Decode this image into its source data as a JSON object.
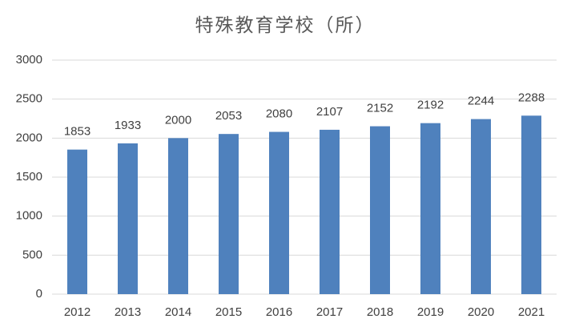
{
  "chart_data": {
    "type": "bar",
    "title": "特殊教育学校（所）",
    "categories": [
      "2012",
      "2013",
      "2014",
      "2015",
      "2016",
      "2017",
      "2018",
      "2019",
      "2020",
      "2021"
    ],
    "values": [
      1853,
      1933,
      2000,
      2053,
      2080,
      2107,
      2152,
      2192,
      2244,
      2288
    ],
    "color": "#4f81bd",
    "ylim": [
      0,
      3000
    ],
    "yticks": [
      0,
      500,
      1000,
      1500,
      2000,
      2500,
      3000
    ],
    "grid": true
  }
}
